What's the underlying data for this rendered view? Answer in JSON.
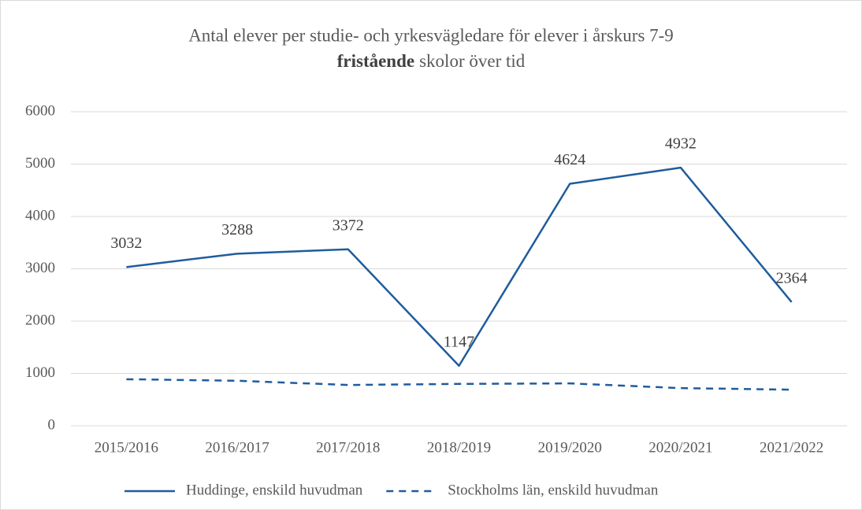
{
  "chart_data": {
    "type": "line",
    "title": {
      "line1": "Antal elever per studie- och yrkesvägledare för elever i årskurs 7-9",
      "line2_bold": "fristående",
      "line2_rest": "skolor över tid"
    },
    "categories": [
      "2015/2016",
      "2016/2017",
      "2017/2018",
      "2018/2019",
      "2019/2020",
      "2020/2021",
      "2021/2022"
    ],
    "series": [
      {
        "name": "Huddinge, enskild huvudman",
        "color": "#1f5c9e",
        "dash": "solid",
        "values": [
          3032,
          3288,
          3372,
          1147,
          4624,
          4932,
          2364
        ],
        "data_labels": true
      },
      {
        "name": "Stockholms län, enskild huvudman",
        "color": "#1f5c9e",
        "dash": "dashed",
        "values": [
          890,
          860,
          780,
          800,
          810,
          720,
          690
        ],
        "data_labels": false
      }
    ],
    "ylim": [
      0,
      6000
    ],
    "yticks": [
      0,
      1000,
      2000,
      3000,
      4000,
      5000,
      6000
    ],
    "grid": true,
    "legend": "bottom"
  }
}
